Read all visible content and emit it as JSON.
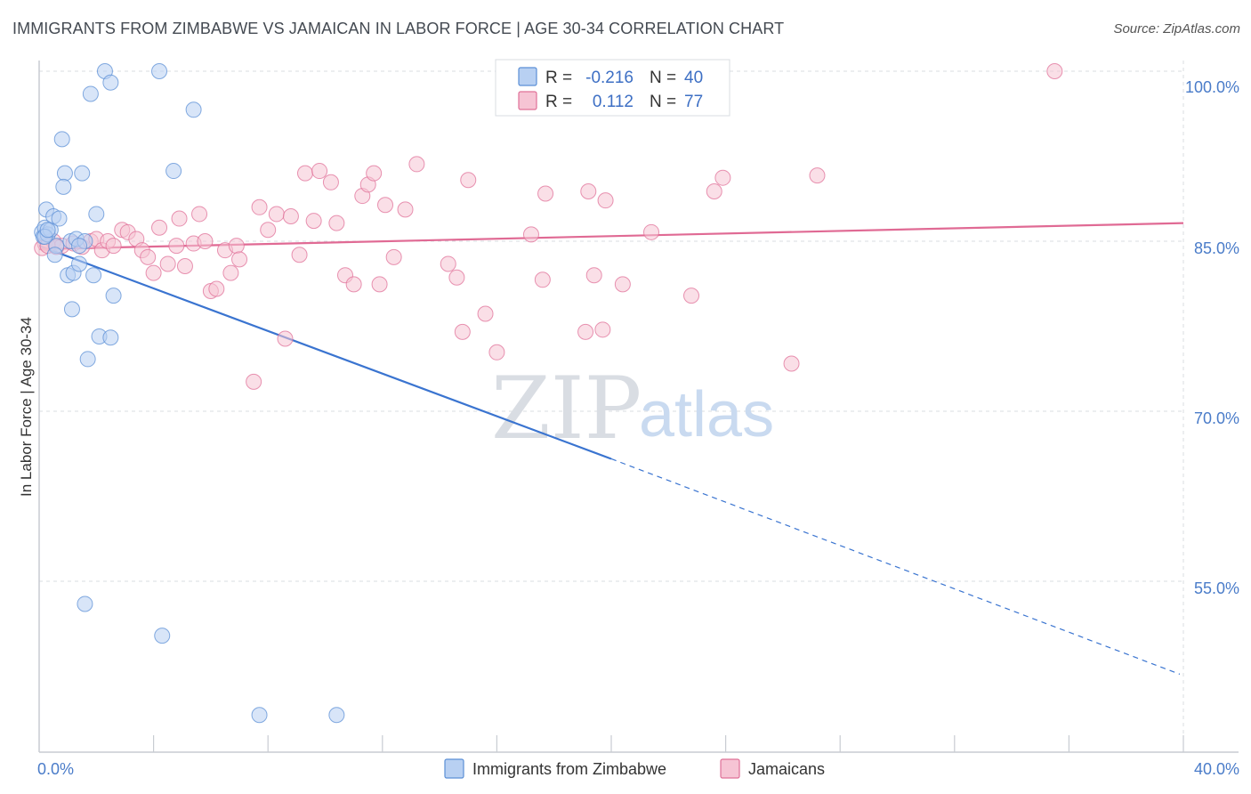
{
  "title": "IMMIGRANTS FROM ZIMBABWE VS JAMAICAN IN LABOR FORCE | AGE 30-34 CORRELATION CHART",
  "source": "Source: ZipAtlas.com",
  "watermark": {
    "zip": "ZIP",
    "atlas": "atlas"
  },
  "colors": {
    "blue": "#5b8fd6",
    "blue_fill": "#b8d0f2",
    "blue_line": "#3a74d0",
    "pink": "#e07098",
    "pink_fill": "#f6c4d4",
    "pink_line": "#e06a94",
    "grid": "#d8dce2",
    "tick_label": "#4a7cc9"
  },
  "legend": {
    "rows": [
      {
        "r_label": "R =",
        "r_value": "-0.216",
        "n_label": "N =",
        "n_value": "40"
      },
      {
        "r_label": "R =",
        "r_value": "0.112",
        "n_label": "N =",
        "n_value": "77"
      }
    ]
  },
  "bottom_legend": {
    "series_a": "Immigrants from Zimbabwe",
    "series_b": "Jamaicans"
  },
  "chart_data": {
    "type": "scatter",
    "ylabel": "In Labor Force | Age 30-34",
    "xlim": [
      0,
      40
    ],
    "ylim": [
      42,
      103
    ],
    "x_tick_labels": [
      "0.0%",
      "40.0%"
    ],
    "y_ticks": [
      55,
      70,
      85,
      100
    ],
    "y_tick_labels": [
      "55.0%",
      "70.0%",
      "85.0%",
      "100.0%"
    ],
    "grid": true,
    "series": [
      {
        "name": "Immigrants from Zimbabwe",
        "color": "#5b8fd6",
        "trend": {
          "x0": 0,
          "y0": 84.6,
          "x1": 20,
          "y1": 65.8,
          "dashed_to_x": 40,
          "dashed_to_y": 46.8
        },
        "points": [
          [
            0.1,
            85.8
          ],
          [
            0.15,
            85.4
          ],
          [
            0.2,
            86.2
          ],
          [
            0.3,
            85.6
          ],
          [
            0.25,
            87.8
          ],
          [
            0.4,
            86.0
          ],
          [
            0.5,
            87.2
          ],
          [
            0.6,
            84.6
          ],
          [
            0.55,
            83.8
          ],
          [
            0.7,
            87.0
          ],
          [
            0.8,
            94.0
          ],
          [
            0.9,
            91.0
          ],
          [
            0.85,
            89.8
          ],
          [
            1.0,
            82.0
          ],
          [
            1.1,
            85.0
          ],
          [
            1.15,
            79.0
          ],
          [
            1.2,
            82.2
          ],
          [
            1.3,
            85.2
          ],
          [
            1.4,
            83.0
          ],
          [
            1.5,
            91.0
          ],
          [
            1.6,
            85.0
          ],
          [
            1.4,
            84.6
          ],
          [
            1.7,
            74.6
          ],
          [
            1.8,
            98.0
          ],
          [
            1.9,
            82.0
          ],
          [
            1.6,
            53.0
          ],
          [
            2.0,
            87.4
          ],
          [
            2.1,
            76.6
          ],
          [
            2.3,
            100.0
          ],
          [
            2.5,
            99.0
          ],
          [
            2.5,
            76.5
          ],
          [
            2.6,
            80.2
          ],
          [
            4.2,
            100.0
          ],
          [
            4.3,
            50.2
          ],
          [
            4.7,
            91.2
          ],
          [
            5.4,
            96.6
          ],
          [
            7.7,
            43.2
          ],
          [
            10.4,
            43.2
          ],
          [
            0.2,
            85.4
          ],
          [
            0.3,
            86.0
          ]
        ]
      },
      {
        "name": "Jamaicans",
        "color": "#e07098",
        "trend": {
          "x0": 0,
          "y0": 84.3,
          "x1": 40,
          "y1": 86.6
        },
        "points": [
          [
            0.2,
            84.8
          ],
          [
            0.5,
            85.0
          ],
          [
            0.8,
            84.6
          ],
          [
            1.2,
            84.8
          ],
          [
            1.5,
            84.5
          ],
          [
            1.8,
            85.0
          ],
          [
            2.0,
            85.2
          ],
          [
            2.2,
            84.2
          ],
          [
            2.4,
            85.0
          ],
          [
            2.6,
            84.6
          ],
          [
            2.9,
            86.0
          ],
          [
            3.1,
            85.8
          ],
          [
            3.4,
            85.2
          ],
          [
            3.6,
            84.2
          ],
          [
            3.8,
            83.6
          ],
          [
            4.0,
            82.2
          ],
          [
            4.2,
            86.2
          ],
          [
            4.5,
            83.0
          ],
          [
            4.8,
            84.6
          ],
          [
            4.9,
            87.0
          ],
          [
            5.1,
            82.8
          ],
          [
            5.4,
            84.8
          ],
          [
            5.6,
            87.4
          ],
          [
            5.8,
            85.0
          ],
          [
            6.0,
            80.6
          ],
          [
            6.2,
            80.8
          ],
          [
            6.5,
            84.2
          ],
          [
            6.7,
            82.2
          ],
          [
            6.9,
            84.6
          ],
          [
            7.0,
            83.4
          ],
          [
            7.5,
            72.6
          ],
          [
            7.7,
            88.0
          ],
          [
            8.0,
            86.0
          ],
          [
            8.3,
            87.4
          ],
          [
            8.6,
            76.4
          ],
          [
            8.8,
            87.2
          ],
          [
            9.1,
            83.8
          ],
          [
            9.3,
            91.0
          ],
          [
            9.6,
            86.8
          ],
          [
            9.8,
            91.2
          ],
          [
            10.2,
            90.2
          ],
          [
            10.4,
            86.6
          ],
          [
            10.7,
            82.0
          ],
          [
            11.0,
            81.2
          ],
          [
            11.3,
            89.0
          ],
          [
            11.5,
            90.0
          ],
          [
            11.7,
            91.0
          ],
          [
            11.9,
            81.2
          ],
          [
            12.1,
            88.2
          ],
          [
            12.4,
            83.6
          ],
          [
            12.8,
            87.8
          ],
          [
            13.2,
            91.8
          ],
          [
            14.3,
            83.0
          ],
          [
            14.6,
            81.8
          ],
          [
            14.8,
            77.0
          ],
          [
            15.0,
            90.4
          ],
          [
            15.6,
            78.6
          ],
          [
            16.0,
            75.2
          ],
          [
            17.2,
            85.6
          ],
          [
            17.6,
            81.6
          ],
          [
            17.7,
            89.2
          ],
          [
            19.1,
            77.0
          ],
          [
            19.2,
            89.4
          ],
          [
            19.4,
            82.0
          ],
          [
            19.7,
            77.2
          ],
          [
            19.8,
            88.6
          ],
          [
            20.4,
            81.2
          ],
          [
            21.4,
            85.8
          ],
          [
            22.8,
            80.2
          ],
          [
            23.6,
            89.4
          ],
          [
            23.9,
            90.6
          ],
          [
            26.3,
            74.2
          ],
          [
            27.2,
            90.8
          ],
          [
            35.5,
            100.0
          ],
          [
            0.1,
            84.4
          ],
          [
            0.3,
            84.6
          ],
          [
            0.6,
            84.5
          ]
        ]
      }
    ]
  }
}
